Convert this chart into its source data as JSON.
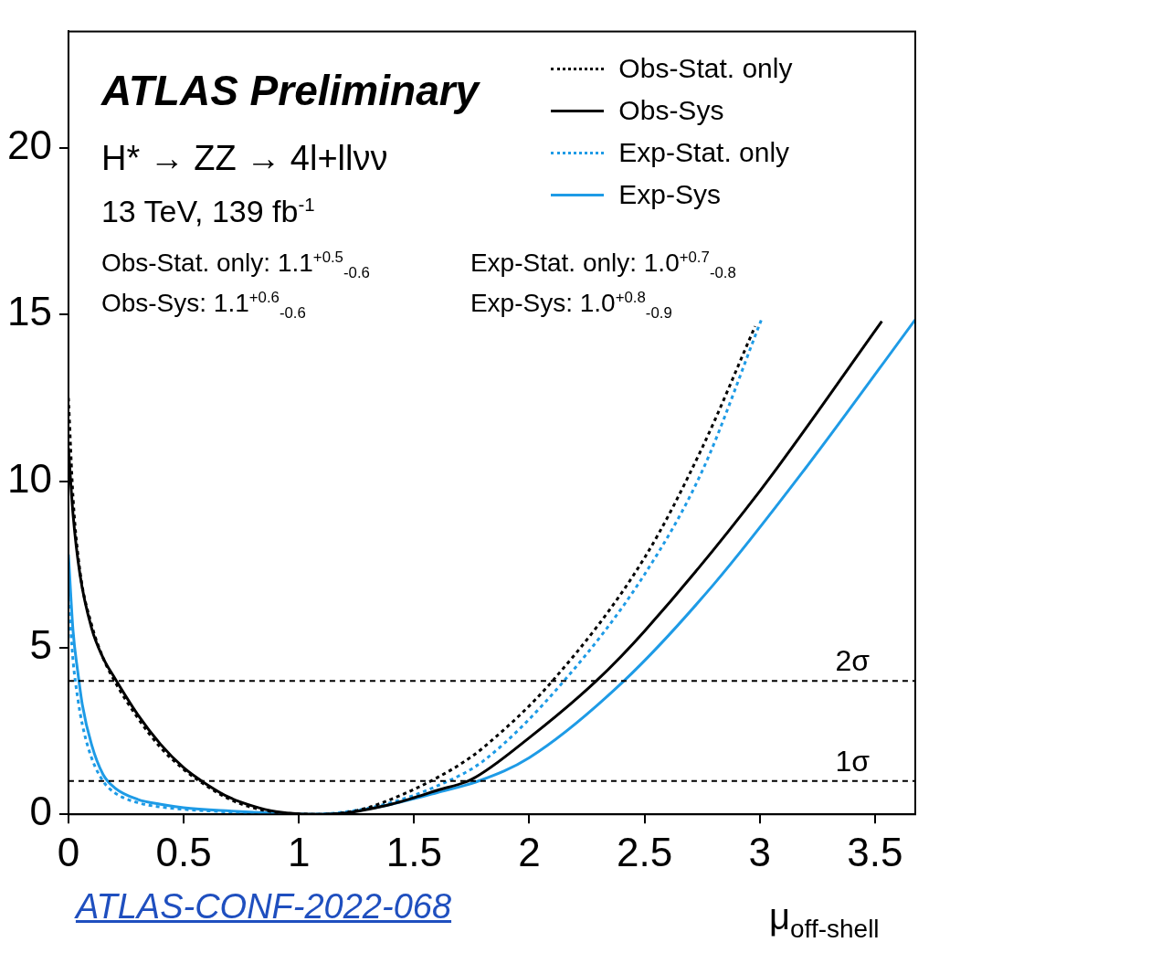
{
  "chart_data": {
    "type": "line",
    "xlabel": "μ$_{off-shell}$",
    "xlim": [
      0,
      3.675
    ],
    "xticks": [
      0,
      0.5,
      1,
      1.5,
      2,
      2.5,
      3,
      3.5
    ],
    "ylim": [
      0,
      23.5
    ],
    "yticks": [
      0,
      5,
      10,
      15,
      20
    ],
    "grid": false,
    "legend": "top right",
    "marker": "none",
    "series": [
      {
        "name": "Obs-Stat. only",
        "color": "#000000",
        "line_style": "dotted",
        "x": [
          0,
          0.02,
          0.05,
          0.1,
          0.15,
          0.2,
          0.3,
          0.4,
          0.5,
          0.6,
          0.7,
          0.8,
          0.9,
          1.0,
          1.1,
          1.2,
          1.3,
          1.4,
          1.5,
          1.6,
          1.7,
          1.8,
          2.1,
          2.5,
          2.75,
          2.98
        ],
        "values": [
          12.5,
          9.5,
          7.3,
          5.7,
          4.7,
          4.0,
          2.9,
          2.0,
          1.35,
          0.85,
          0.45,
          0.2,
          0.06,
          0.01,
          0,
          0.05,
          0.2,
          0.45,
          0.75,
          1.1,
          1.5,
          2.0,
          4.0,
          7.7,
          11,
          14.65
        ]
      },
      {
        "name": "Obs-Sys",
        "color": "#000000",
        "line_style": "solid",
        "x": [
          0,
          0.02,
          0.05,
          0.1,
          0.15,
          0.2,
          0.3,
          0.4,
          0.5,
          0.6,
          0.7,
          0.8,
          0.9,
          1.0,
          1.1,
          1.2,
          1.3,
          1.4,
          1.5,
          1.6,
          1.75,
          2.0,
          2.29,
          2.5,
          3.0,
          3.53
        ],
        "values": [
          11,
          9,
          7.2,
          5.6,
          4.7,
          4.1,
          3.0,
          2.1,
          1.4,
          0.9,
          0.5,
          0.25,
          0.08,
          0.01,
          0,
          0.03,
          0.15,
          0.3,
          0.5,
          0.72,
          1.05,
          2.3,
          4.0,
          5.5,
          9.7,
          14.8
        ]
      },
      {
        "name": "Exp-Stat. only",
        "color": "#1e9be6",
        "line_style": "dotted",
        "x": [
          0,
          0.02,
          0.04,
          0.06,
          0.1,
          0.15,
          0.2,
          0.3,
          0.4,
          0.5,
          0.7,
          0.9,
          1.05,
          1.2,
          1.4,
          1.6,
          1.8,
          2.15,
          2.5,
          2.75,
          3.01
        ],
        "values": [
          6.5,
          4.6,
          3.5,
          2.7,
          1.7,
          1.0,
          0.65,
          0.35,
          0.22,
          0.15,
          0.07,
          0.02,
          0,
          0.07,
          0.35,
          0.85,
          1.6,
          4.0,
          7.2,
          10.3,
          14.9
        ]
      },
      {
        "name": "Exp-Sys",
        "color": "#1e9be6",
        "line_style": "solid",
        "x": [
          0,
          0.02,
          0.04,
          0.06,
          0.1,
          0.15,
          0.2,
          0.3,
          0.4,
          0.5,
          0.7,
          0.9,
          1.05,
          1.2,
          1.4,
          1.6,
          1.78,
          2.0,
          2.41,
          2.8,
          3.2,
          3.675
        ],
        "values": [
          7.8,
          5.5,
          4.3,
          3.3,
          2.1,
          1.2,
          0.8,
          0.45,
          0.3,
          0.2,
          0.1,
          0.03,
          0,
          0.05,
          0.3,
          0.65,
          1.0,
          1.7,
          4.0,
          6.9,
          10.4,
          14.85
        ]
      }
    ],
    "ref_lines": [
      {
        "axis": "y",
        "value": 4,
        "label": "2σ",
        "line_style": "dashed",
        "color": "#000000"
      },
      {
        "axis": "y",
        "value": 1,
        "label": "1σ",
        "line_style": "dashed",
        "color": "#000000"
      }
    ],
    "annotations": [
      "ATLAS Preliminary",
      "H* → ZZ → 4l+llνν",
      "13 TeV, 139 fb$^{-1}$",
      "Obs-Stat. only: 1.1$^{+0.5}$$_{-0.6}$",
      "Obs-Sys: 1.1$^{+0.6}$$_{-0.6}$",
      "Exp-Stat. only: 1.0$^{+0.7}$$_{-0.8}$",
      "Exp-Sys: 1.0$^{+0.8}$$_{-0.9}$",
      "ATLAS-CONF-2022-068"
    ]
  }
}
